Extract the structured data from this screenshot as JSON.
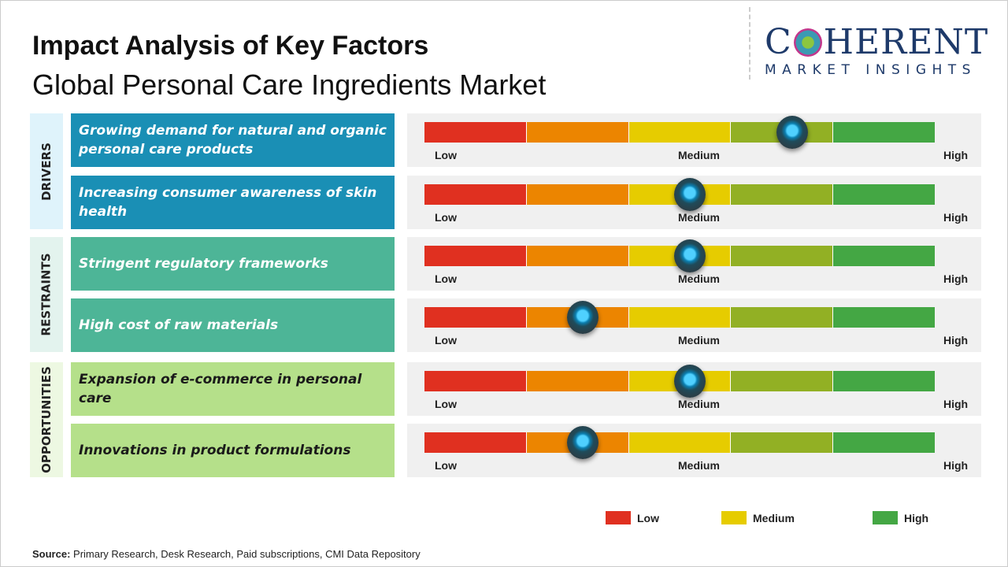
{
  "header": {
    "title": "Impact Analysis of Key Factors",
    "subtitle": "Global Personal Care Ingredients Market"
  },
  "logo": {
    "line1": "COHERENT",
    "line2": "MARKET INSIGHTS"
  },
  "colors": {
    "segments": [
      "#e03020",
      "#ec8500",
      "#e6cc00",
      "#92b024",
      "#44a744"
    ],
    "drivers": "#1a8fb5",
    "restraints": "#4db597",
    "opportunities": "#b5e08a",
    "legend_low": "#e03020",
    "legend_medium": "#e6cc00",
    "legend_high": "#44a744"
  },
  "scale_labels": {
    "low": "Low",
    "medium": "Medium",
    "high": "High"
  },
  "chart_data": {
    "type": "gauge",
    "scale": [
      "Low",
      "Medium",
      "High"
    ],
    "range": [
      0,
      1
    ],
    "categories": [
      {
        "name": "DRIVERS",
        "factors": [
          {
            "label": "Growing demand for natural and organic personal care products",
            "value": 0.72
          },
          {
            "label": "Increasing consumer awareness of skin health",
            "value": 0.52
          }
        ]
      },
      {
        "name": "RESTRAINTS",
        "factors": [
          {
            "label": "Stringent regulatory frameworks",
            "value": 0.52
          },
          {
            "label": "High cost of raw materials",
            "value": 0.31
          }
        ]
      },
      {
        "name": "OPPORTUNITIES",
        "factors": [
          {
            "label": "Expansion of e-commerce in personal care",
            "value": 0.52
          },
          {
            "label": "Innovations in product formulations",
            "value": 0.31
          }
        ]
      }
    ],
    "legend": [
      "Low",
      "Medium",
      "High"
    ]
  },
  "source": {
    "label": "Source:",
    "text": " Primary Research, Desk Research, Paid subscriptions, CMI Data Repository"
  }
}
